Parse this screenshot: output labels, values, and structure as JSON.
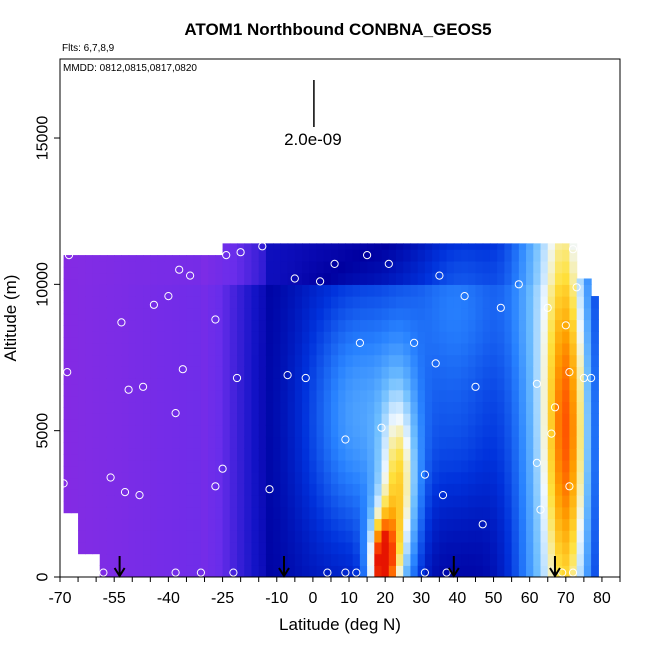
{
  "chart_data": {
    "type": "heatmap",
    "title": "ATOM1 Northbound CONBNA_GEOS5",
    "flights_label": "Flts: 6,7,8,9",
    "dates_label": "MMDD: 0812,0815,0817,0820",
    "xlabel": "Latitude (deg N)",
    "ylabel": "Altitude (m)",
    "xlim": [
      -70,
      85
    ],
    "ylim": [
      0,
      17700
    ],
    "x_ticks": [
      -70,
      -55,
      -40,
      -25,
      -10,
      0,
      10,
      20,
      30,
      40,
      50,
      60,
      70,
      80
    ],
    "x_tick_labels": [
      "-70",
      "-55",
      "-40",
      "-25",
      "-10",
      "0",
      "10",
      "20",
      "30",
      "40",
      "50",
      "60",
      "70",
      "80"
    ],
    "y_ticks": [
      0,
      5000,
      10000,
      15000
    ],
    "y_tick_labels": [
      "0",
      "5000",
      "10000",
      "15000"
    ],
    "scale_bar_label": "2.0e-09",
    "scale_bar_position_lat": 0,
    "arrows_lat": [
      -53.5,
      -8,
      39,
      67
    ],
    "colors": {
      "low": "#8a2be2",
      "dark_blue": "#0000a0",
      "mid_blue": "#3a8fff",
      "pale": "#f0f8ff",
      "yellow": "#ffcc00",
      "orange": "#ff6600",
      "red": "#ff2200"
    },
    "sample_points": [
      [
        -67.5,
        11000
      ],
      [
        -68,
        7000
      ],
      [
        -69,
        3200
      ],
      [
        -56,
        3400
      ],
      [
        -52,
        2900
      ],
      [
        -48,
        2800
      ],
      [
        -53,
        8700
      ],
      [
        -51,
        6400
      ],
      [
        -47,
        6500
      ],
      [
        -44,
        9300
      ],
      [
        -40,
        9600
      ],
      [
        -37,
        10500
      ],
      [
        -34,
        10300
      ],
      [
        -38,
        5600
      ],
      [
        -36,
        7100
      ],
      [
        -27,
        3100
      ],
      [
        -25,
        3700
      ],
      [
        -27,
        8800
      ],
      [
        -21,
        6800
      ],
      [
        -20,
        11100
      ],
      [
        -24,
        11000
      ],
      [
        -14,
        11300
      ],
      [
        -12,
        3000
      ],
      [
        -7,
        6900
      ],
      [
        -2,
        6800
      ],
      [
        -5,
        10200
      ],
      [
        2,
        10100
      ],
      [
        6,
        10700
      ],
      [
        9,
        4700
      ],
      [
        13,
        8000
      ],
      [
        15,
        11000
      ],
      [
        19,
        5100
      ],
      [
        21,
        10700
      ],
      [
        28,
        8000
      ],
      [
        31,
        3500
      ],
      [
        34,
        7300
      ],
      [
        35,
        10300
      ],
      [
        36,
        2800
      ],
      [
        42,
        9600
      ],
      [
        45,
        6500
      ],
      [
        47,
        1800
      ],
      [
        52,
        9200
      ],
      [
        57,
        10000
      ],
      [
        62,
        6600
      ],
      [
        62,
        3900
      ],
      [
        63,
        2300
      ],
      [
        65,
        9200
      ],
      [
        66,
        4900
      ],
      [
        67,
        5800
      ],
      [
        70,
        8600
      ],
      [
        71,
        7000
      ],
      [
        71,
        3100
      ],
      [
        72,
        11200
      ],
      [
        73,
        9900
      ],
      [
        75,
        6800
      ],
      [
        77,
        6800
      ],
      [
        -58,
        150
      ],
      [
        -38,
        150
      ],
      [
        -31,
        150
      ],
      [
        -22,
        150
      ],
      [
        4,
        150
      ],
      [
        9,
        150
      ],
      [
        12,
        150
      ],
      [
        31,
        150
      ],
      [
        37,
        150
      ],
      [
        69,
        150
      ],
      [
        72,
        150
      ]
    ]
  }
}
